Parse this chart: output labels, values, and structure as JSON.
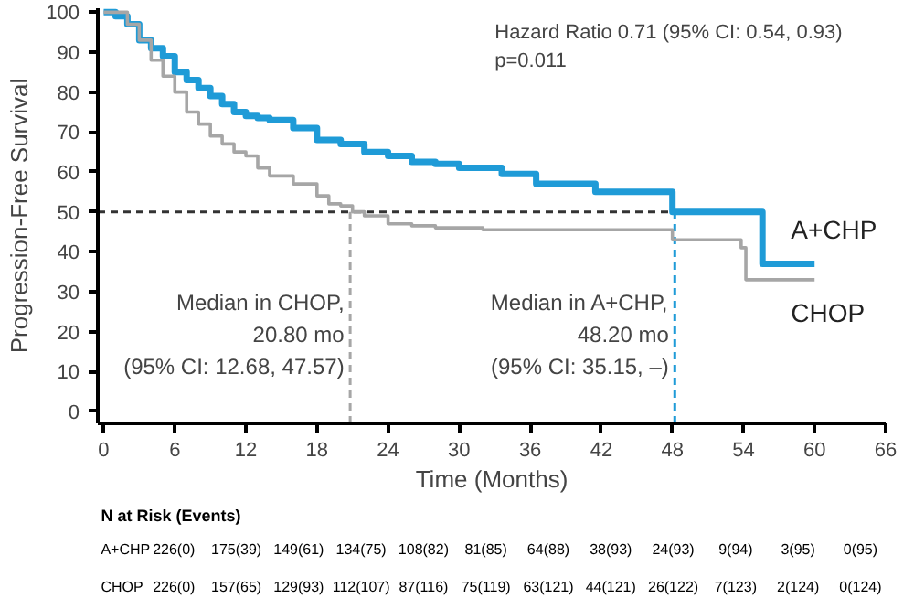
{
  "chart_data": {
    "type": "step",
    "xlabel": "Time (Months)",
    "ylabel": "Progression-Free Survival",
    "xlim": [
      -0.5,
      66
    ],
    "ylim": [
      -3,
      101
    ],
    "xticks": [
      0,
      6,
      12,
      18,
      24,
      30,
      36,
      42,
      48,
      54,
      60,
      66
    ],
    "yticks": [
      0,
      10,
      20,
      30,
      40,
      50,
      60,
      70,
      80,
      90,
      100
    ],
    "grid": false,
    "line_style": "solid",
    "series": [
      {
        "name": "A+CHP",
        "color": "#1f9bd7",
        "x": [
          0,
          1,
          2,
          3,
          4,
          5,
          6,
          7,
          8,
          9,
          10,
          11,
          12,
          13,
          14,
          16,
          18,
          20,
          22,
          24,
          26,
          28,
          30,
          33.6,
          36.5,
          41.5,
          48,
          55.6,
          60
        ],
        "values": [
          100,
          99,
          97,
          93,
          91,
          89,
          85,
          83,
          81,
          79,
          77,
          75,
          74,
          73.5,
          73,
          71,
          68,
          67,
          65,
          64,
          62.5,
          62,
          61,
          59.5,
          57,
          55,
          50,
          37,
          37
        ]
      },
      {
        "name": "CHOP",
        "color": "#a6a6a6",
        "x": [
          0,
          2,
          3,
          4,
          5,
          6,
          7,
          8,
          9,
          10,
          11,
          12,
          13,
          14,
          16,
          18,
          19,
          20,
          21,
          22,
          24,
          26,
          28,
          32,
          48,
          53.8,
          54.2,
          60
        ],
        "values": [
          100,
          97,
          93,
          88,
          84,
          80,
          75,
          72,
          69,
          67,
          65,
          64,
          61,
          59,
          57,
          54,
          52,
          51.5,
          50,
          49,
          47,
          46.5,
          46,
          45.5,
          43,
          41,
          33,
          33
        ]
      }
    ],
    "ref_lines": [
      {
        "axis": "y",
        "value": 50,
        "color": "#333333",
        "line_style": "dashed"
      },
      {
        "axis": "x",
        "value": 20.8,
        "color": "#a6a6a6",
        "line_style": "dashed"
      },
      {
        "axis": "x",
        "value": 48.2,
        "color": "#1f9bd7",
        "line_style": "dashed"
      }
    ],
    "annotations": [
      "Hazard Ratio 0.71 (95% CI: 0.54, 0.93)",
      "p=0.011",
      "Median in CHOP,",
      "20.80 mo",
      "(95% CI: 12.68, 47.57)",
      "Median in A+CHP,",
      "48.20 mo",
      "(95% CI: 35.15, –)",
      "N at Risk (Events)",
      "A+CHP",
      "226(0)",
      "175(39)",
      "149(61)",
      "134(75)",
      "108(82)",
      "81(85)",
      "64(88)",
      "38(93)",
      "24(93)",
      "9(94)",
      "3(95)",
      "0(95)",
      "CHOP",
      "226(0)",
      "157(65)",
      "129(93)",
      "112(107)",
      "87(116)",
      "75(119)",
      "63(121)",
      "44(121)",
      "26(122)",
      "7(123)",
      "2(124)",
      "0(124)"
    ]
  }
}
